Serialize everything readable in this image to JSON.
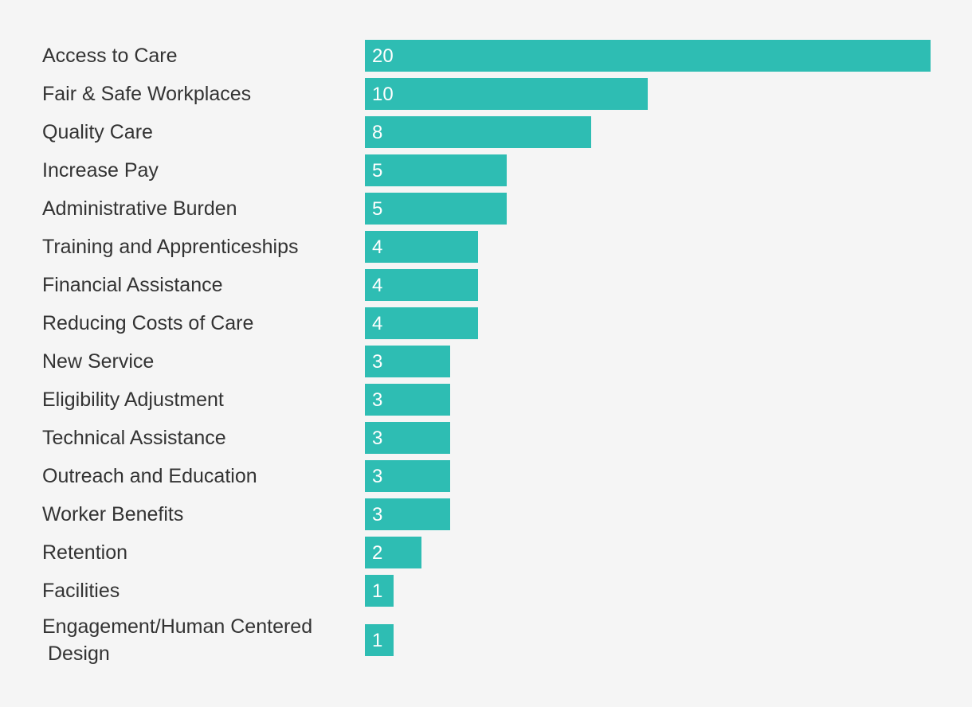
{
  "chart_data": {
    "type": "bar",
    "orientation": "horizontal",
    "title": "",
    "xlabel": "",
    "ylabel": "",
    "categories": [
      "Access to Care",
      "Fair & Safe Workplaces",
      "Quality Care",
      "Increase Pay",
      "Administrative Burden",
      "Training and Apprenticeships",
      "Financial Assistance",
      "Reducing Costs of Care",
      "New Service",
      "Eligibility Adjustment",
      "Technical Assistance",
      "Outreach and Education",
      "Worker Benefits",
      "Retention",
      "Facilities",
      "Engagement/Human Centered Design"
    ],
    "values": [
      20,
      10,
      8,
      5,
      5,
      4,
      4,
      4,
      3,
      3,
      3,
      3,
      3,
      2,
      1,
      1
    ],
    "xlim": [
      0,
      20
    ],
    "grid": false,
    "legend": "none",
    "bar_color": "#2ebdb3",
    "label_color": "#333333",
    "value_label_color": "#ffffff",
    "background_color": "#f5f5f5"
  }
}
